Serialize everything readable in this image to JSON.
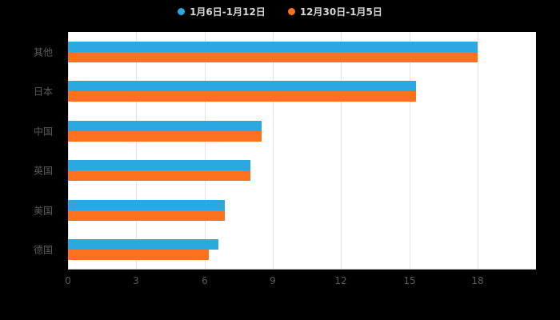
{
  "chart_data": {
    "type": "bar",
    "orientation": "horizontal",
    "title": "",
    "categories": [
      "其他",
      "日本",
      "中国",
      "英国",
      "美国",
      "德国"
    ],
    "series": [
      {
        "name": "1月6日-1月12日",
        "color": "#29a9e0",
        "values": [
          18,
          15.3,
          8.5,
          8.0,
          6.9,
          6.6
        ]
      },
      {
        "name": "12月30日-1月5日",
        "color": "#fb7120",
        "values": [
          18,
          15.3,
          8.5,
          8.0,
          6.9,
          6.2
        ]
      }
    ],
    "xlabel": "",
    "ylabel": "",
    "xlim": [
      0,
      18
    ],
    "x_ticks": [
      0,
      3,
      6,
      9,
      12,
      15,
      18
    ],
    "grid": true,
    "legend_position": "top"
  },
  "colors": {
    "page_background": "#000000",
    "plot_background": "#ffffff",
    "gridline": "#e4e4e4",
    "axis_line": "#b9b9b9",
    "label_text": "#5a5a5a",
    "legend_text": "#d6d6d6"
  }
}
